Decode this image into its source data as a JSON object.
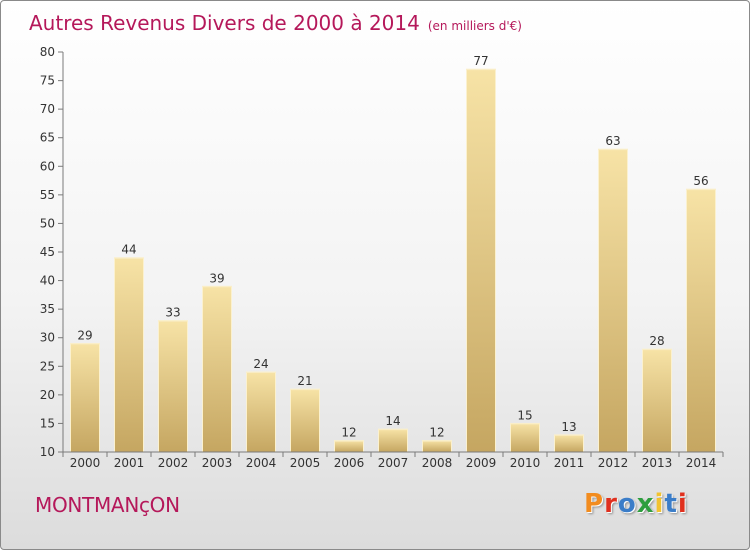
{
  "title": {
    "main": "Autres Revenus Divers de 2000 à 2014",
    "unit": "(en milliers d'€)"
  },
  "location": "MONTMANçON",
  "logo": {
    "text": "Proxiti",
    "colors": [
      "#f28c1f",
      "#e0301e",
      "#3b7dc8",
      "#2e9e3e",
      "#f2c230",
      "#3b7dc8",
      "#e0301e"
    ]
  },
  "colors": {
    "accent": "#b5185a",
    "bar_light": "#f5df9f",
    "bar_dark": "#c7a863"
  },
  "chart_data": {
    "type": "bar",
    "categories": [
      "2000",
      "2001",
      "2002",
      "2003",
      "2004",
      "2005",
      "2006",
      "2007",
      "2008",
      "2009",
      "2010",
      "2011",
      "2012",
      "2013",
      "2014"
    ],
    "values": [
      29,
      44,
      33,
      39,
      24,
      21,
      12,
      14,
      12,
      77,
      15,
      13,
      63,
      28,
      56
    ],
    "ylim": [
      10,
      80
    ],
    "yticks": [
      10,
      15,
      20,
      25,
      30,
      35,
      40,
      45,
      50,
      55,
      60,
      65,
      70,
      75,
      80
    ],
    "grid": false,
    "data_labels": true
  }
}
